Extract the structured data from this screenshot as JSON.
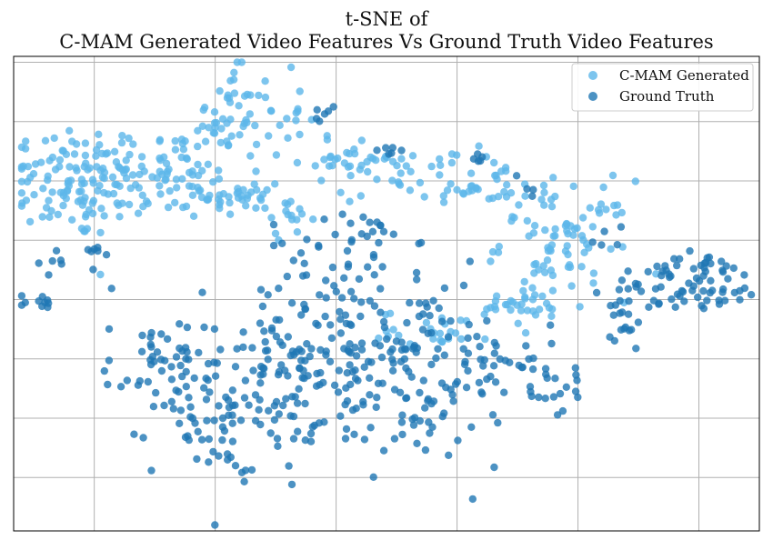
{
  "chart_data": {
    "type": "scatter",
    "title_line1": "t-SNE of",
    "title_line2": "C-MAM Generated Video Features Vs Ground Truth Video Features",
    "xlabel": "",
    "ylabel": "",
    "xlim": [
      -95,
      90
    ],
    "ylim": [
      -78,
      82
    ],
    "grid": true,
    "legend_position": "top-right",
    "x_ticks": [
      -75,
      -45,
      -15,
      15,
      45,
      75
    ],
    "y_ticks": [
      -60,
      -40,
      -20,
      0,
      20,
      40,
      60,
      80
    ],
    "series": [
      {
        "name": "C-MAM Generated",
        "color": "#5DB7EA",
        "clusters": [
          {
            "cx": -80,
            "cy": 40,
            "sx": 9,
            "sy": 10,
            "n": 110
          },
          {
            "cx": -58,
            "cy": 42,
            "sx": 10,
            "sy": 8,
            "n": 90
          },
          {
            "cx": -42,
            "cy": 62,
            "sx": 4,
            "sy": 8,
            "n": 35
          },
          {
            "cx": -33,
            "cy": 62,
            "sx": 5,
            "sy": 7,
            "n": 25
          },
          {
            "cx": -38,
            "cy": 35,
            "sx": 5,
            "sy": 4,
            "n": 35
          },
          {
            "cx": -27,
            "cy": 27,
            "sx": 3,
            "sy": 3,
            "n": 15
          },
          {
            "cx": -12,
            "cy": 48,
            "sx": 6,
            "sy": 4,
            "n": 25
          },
          {
            "cx": 3,
            "cy": 42,
            "sx": 9,
            "sy": 5,
            "n": 40
          },
          {
            "cx": 23,
            "cy": 38,
            "sx": 6,
            "sy": 4,
            "n": 25
          },
          {
            "cx": 42,
            "cy": 20,
            "sx": 8,
            "sy": 10,
            "n": 85
          },
          {
            "cx": 32,
            "cy": -3,
            "sx": 7,
            "sy": 3,
            "n": 30
          },
          {
            "cx": 10,
            "cy": -10,
            "sx": 7,
            "sy": 3,
            "n": 25
          }
        ]
      },
      {
        "name": "Ground Truth",
        "color": "#1F77B4",
        "clusters": [
          {
            "cx": -40,
            "cy": -35,
            "sx": 10,
            "sy": 12,
            "n": 110
          },
          {
            "cx": -60,
            "cy": -22,
            "sx": 6,
            "sy": 8,
            "n": 40
          },
          {
            "cx": -17,
            "cy": -18,
            "sx": 13,
            "sy": 18,
            "n": 130
          },
          {
            "cx": 5,
            "cy": -20,
            "sx": 15,
            "sy": 18,
            "n": 130
          },
          {
            "cx": -10,
            "cy": 20,
            "sx": 7,
            "sy": 5,
            "n": 25
          },
          {
            "cx": -75,
            "cy": 15,
            "sx": 3,
            "sy": 6,
            "n": 10
          },
          {
            "cx": -85,
            "cy": 8,
            "sx": 3,
            "sy": 3,
            "n": 4
          },
          {
            "cx": -90,
            "cy": -1,
            "sx": 3,
            "sy": 2,
            "n": 10
          },
          {
            "cx": 38,
            "cy": -28,
            "sx": 5,
            "sy": 6,
            "n": 25
          },
          {
            "cx": 23,
            "cy": -20,
            "sx": 4,
            "sy": 4,
            "n": 10
          },
          {
            "cx": 55,
            "cy": -10,
            "sx": 4,
            "sy": 4,
            "n": 12
          },
          {
            "cx": 77,
            "cy": 6,
            "sx": 7,
            "sy": 5,
            "n": 55
          },
          {
            "cx": 63,
            "cy": 3,
            "sx": 5,
            "sy": 5,
            "n": 25
          },
          {
            "cx": -18,
            "cy": 63,
            "sx": 2,
            "sy": 1.5,
            "n": 6
          },
          {
            "cx": -2,
            "cy": 50,
            "sx": 2,
            "sy": 1,
            "n": 6
          },
          {
            "cx": 20,
            "cy": 48,
            "sx": 2,
            "sy": 1,
            "n": 5
          },
          {
            "cx": 32,
            "cy": 38,
            "sx": 2,
            "sy": 2,
            "n": 3
          },
          {
            "cx": 53,
            "cy": 22,
            "sx": 4,
            "sy": 4,
            "n": 5
          }
        ]
      }
    ]
  }
}
